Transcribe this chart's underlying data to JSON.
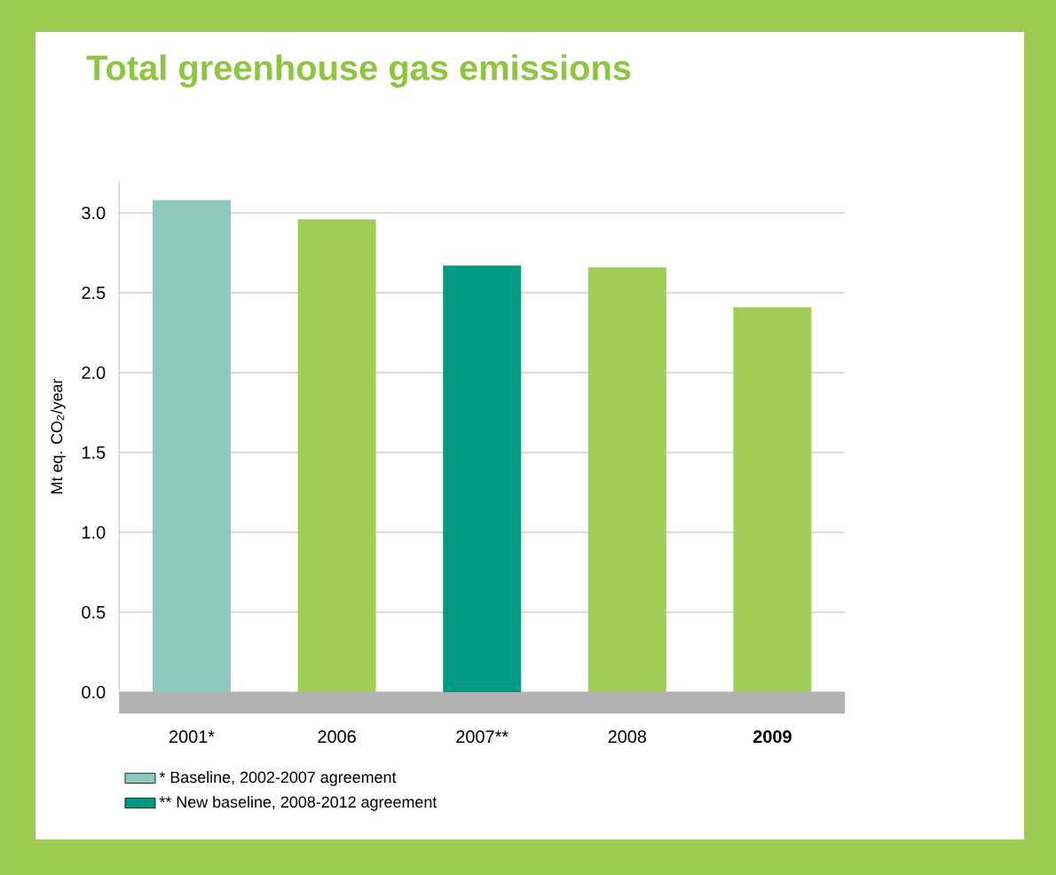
{
  "chart_data": {
    "type": "bar",
    "title": "Total greenhouse gas emissions",
    "ylabel": "Mt eq. CO$_{2}$/year",
    "categories": [
      "2001*",
      "2006",
      "2007**",
      "2008",
      "**2009**"
    ],
    "series": [
      {
        "name": "* Baseline, 2002-2007 agreement",
        "color": "#8fc8bd",
        "values": [
          3.08,
          null,
          null,
          null,
          null
        ]
      },
      {
        "name": "** New baseline, 2008-2012 agreement",
        "color": "#009b82",
        "values": [
          null,
          null,
          2.67,
          null,
          null
        ]
      },
      {
        "color": "#a3cd59",
        "values": [
          null,
          2.96,
          null,
          2.66,
          2.41
        ]
      }
    ],
    "ylim": [
      0,
      3.2
    ],
    "yticks": [
      {
        "value": 0,
        "label": "0.0"
      },
      {
        "value": 0.5,
        "label": "0.5"
      },
      {
        "value": 1,
        "label": "1.0"
      },
      {
        "value": 1.5,
        "label": "1.5"
      },
      {
        "value": 2,
        "label": "2.0"
      },
      {
        "value": 2.5,
        "label": "2.5"
      },
      {
        "value": 3,
        "label": "3.0"
      }
    ],
    "grid": "y",
    "legend": "bottom left"
  }
}
